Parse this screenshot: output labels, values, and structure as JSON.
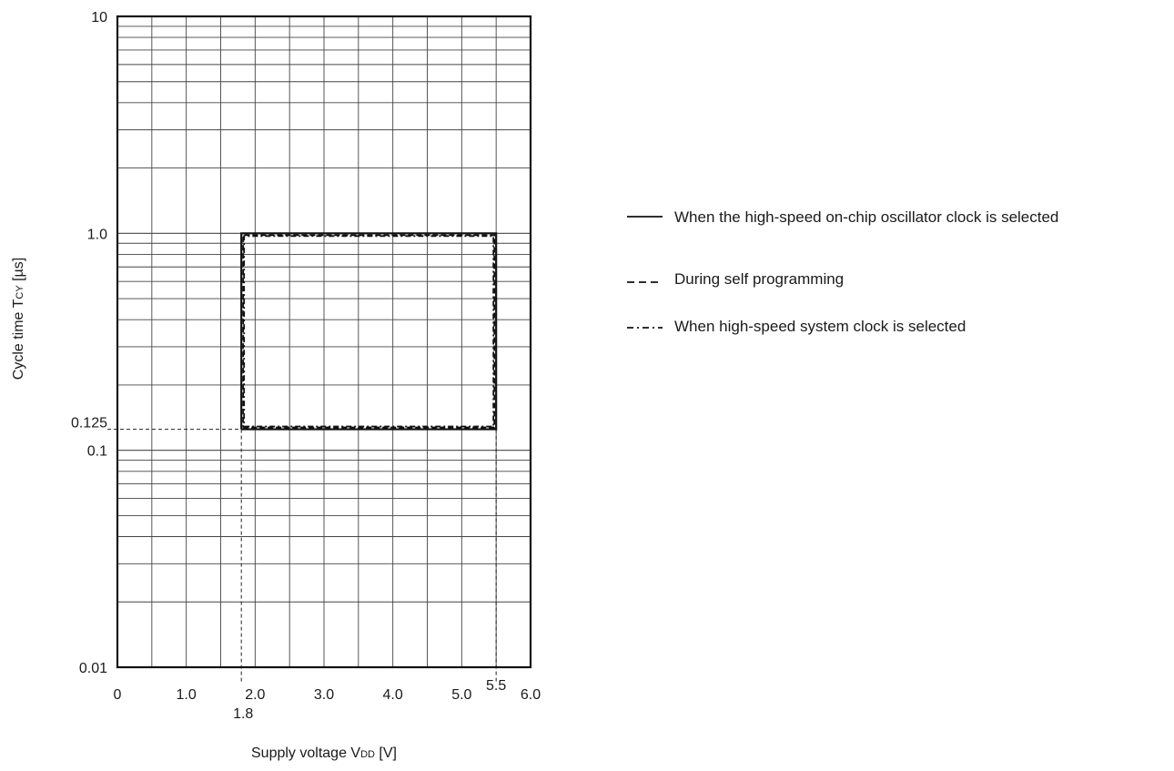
{
  "chart_data": {
    "type": "line",
    "x_axis": {
      "label": "Supply voltage V",
      "label_sub": "DD",
      "label_unit": " [V]",
      "range": [
        0,
        6.0
      ],
      "scale": "linear",
      "ticks": [
        {
          "value": 0,
          "label": "0"
        },
        {
          "value": 1.0,
          "label": "1.0"
        },
        {
          "value": 2.0,
          "label": "2.0"
        },
        {
          "value": 3.0,
          "label": "3.0"
        },
        {
          "value": 4.0,
          "label": "4.0"
        },
        {
          "value": 5.0,
          "label": "5.0"
        },
        {
          "value": 6.0,
          "label": "6.0"
        }
      ],
      "marked_values": [
        {
          "value": 1.8,
          "label": "1.8"
        },
        {
          "value": 5.5,
          "label": "5.5"
        }
      ]
    },
    "y_axis": {
      "label": "Cycle time T",
      "label_sub": "CY",
      "label_unit": " [µs]",
      "range": [
        0.01,
        10
      ],
      "scale": "log",
      "ticks": [
        {
          "value": 10,
          "label": "10"
        },
        {
          "value": 1.0,
          "label": "1.0"
        },
        {
          "value": 0.1,
          "label": "0.1"
        },
        {
          "value": 0.01,
          "label": "0.01"
        }
      ],
      "marked_values": [
        {
          "value": 0.125,
          "label": "0.125"
        }
      ]
    },
    "grid": true,
    "legend_position": "right",
    "series": [
      {
        "name": "When the high-speed on-chip oscillator clock is selected",
        "style": "solid",
        "points": [
          [
            1.8,
            0.125
          ],
          [
            5.5,
            0.125
          ],
          [
            5.5,
            1.0
          ],
          [
            1.8,
            1.0
          ],
          [
            1.8,
            0.125
          ]
        ]
      },
      {
        "name": "During self programming",
        "style": "dashed",
        "points": [
          [
            1.8,
            0.125
          ],
          [
            5.5,
            0.125
          ],
          [
            5.5,
            1.0
          ],
          [
            1.8,
            1.0
          ],
          [
            1.8,
            0.125
          ]
        ]
      },
      {
        "name": "When high-speed system clock is selected",
        "style": "dashdot",
        "points": [
          [
            1.8,
            0.125
          ],
          [
            5.5,
            0.125
          ],
          [
            5.5,
            1.0
          ],
          [
            1.8,
            1.0
          ],
          [
            1.8,
            0.125
          ]
        ]
      }
    ]
  }
}
